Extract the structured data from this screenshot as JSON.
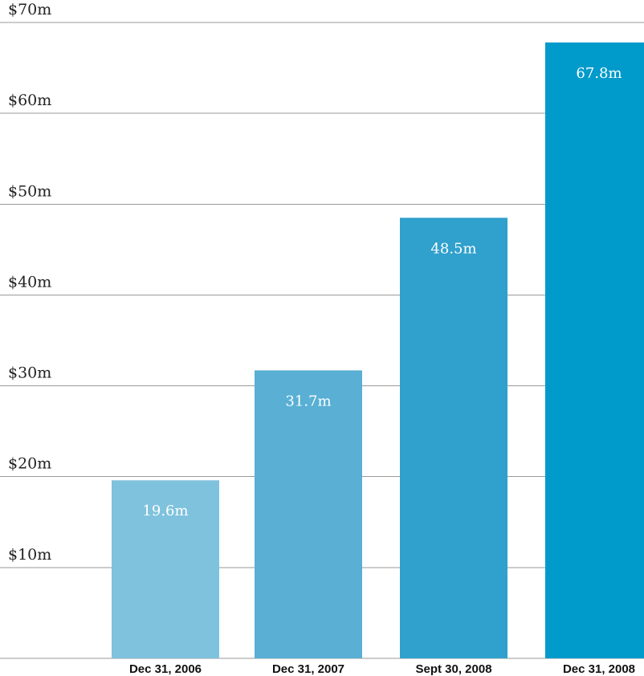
{
  "chart_data": {
    "type": "bar",
    "title": "",
    "xlabel": "",
    "ylabel": "",
    "ylim": [
      0,
      70
    ],
    "y_ticks": [
      {
        "value": 10,
        "label": "$10m"
      },
      {
        "value": 20,
        "label": "$20m"
      },
      {
        "value": 30,
        "label": "$30m"
      },
      {
        "value": 40,
        "label": "$40m"
      },
      {
        "value": 50,
        "label": "$50m"
      },
      {
        "value": 60,
        "label": "$60m"
      },
      {
        "value": 70,
        "label": "$70m"
      }
    ],
    "categories": [
      "Dec 31, 2006",
      "Dec 31, 2007",
      "Sept 30, 2008",
      "Dec 31, 2008"
    ],
    "values": [
      19.6,
      31.7,
      48.5,
      67.8
    ],
    "data_labels": [
      "19.6m",
      "31.7m",
      "48.5m",
      "67.8m"
    ],
    "bar_colors": [
      "#7fc2dd",
      "#59afd4",
      "#30a0cc",
      "#009acb"
    ],
    "grid": true,
    "legend": "none"
  }
}
